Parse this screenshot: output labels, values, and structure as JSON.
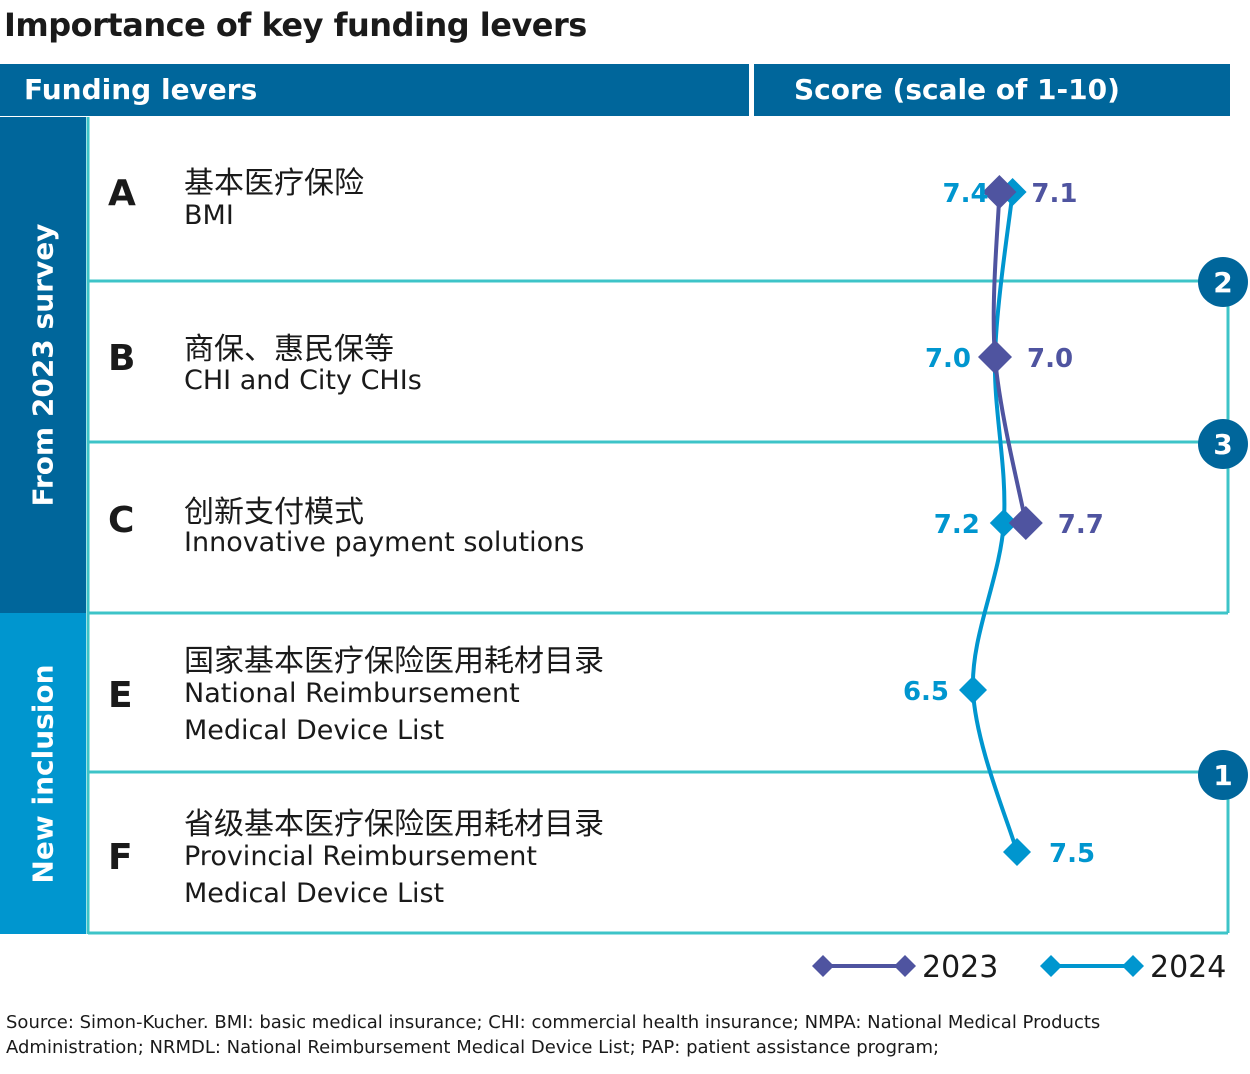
{
  "title": "Importance of key funding levers",
  "header": {
    "left": "Funding levers",
    "right": "Score (scale of 1-10)"
  },
  "groups": [
    {
      "label": "From 2023 survey",
      "color": "#00669b"
    },
    {
      "label": "New inclusion",
      "color": "#0096cf"
    }
  ],
  "rows": [
    {
      "letter": "A",
      "cn": "基本医疗保险",
      "en": [
        "BMI"
      ]
    },
    {
      "letter": "B",
      "cn": "商保、惠民保等",
      "en": [
        "CHI and City CHIs"
      ]
    },
    {
      "letter": "C",
      "cn": "创新支付模式",
      "en": [
        "Innovative payment solutions"
      ]
    },
    {
      "letter": "E",
      "cn": "国家基本医疗保险医用耗材目录",
      "en": [
        "National Reimbursement",
        "Medical Device List"
      ]
    },
    {
      "letter": "F",
      "cn": "省级基本医疗保险医用耗材目录",
      "en": [
        "Provincial Reimbursement",
        "Medical Device List"
      ]
    }
  ],
  "rank_badges": [
    {
      "label": "2",
      "row": "B"
    },
    {
      "label": "3",
      "row": "C"
    },
    {
      "label": "1",
      "row": "F"
    }
  ],
  "chart_data": {
    "type": "line",
    "title": "Importance of key funding levers",
    "ylabel": "Score (scale of 1-10)",
    "categories": [
      "A",
      "B",
      "C",
      "E",
      "F"
    ],
    "series": [
      {
        "name": "2023",
        "color": "#4f54a0",
        "values": [
          7.1,
          7.0,
          7.7,
          null,
          null
        ],
        "labels": [
          "7.1",
          "7.0",
          "7.7",
          null,
          null
        ]
      },
      {
        "name": "2024",
        "color": "#0096cf",
        "values": [
          7.4,
          7.0,
          7.2,
          6.5,
          7.5
        ],
        "labels": [
          "7.4",
          "7.0",
          "7.2",
          "6.5",
          "7.5"
        ]
      }
    ]
  },
  "legend": [
    {
      "name": "2023",
      "color": "#4f54a0"
    },
    {
      "name": "2024",
      "color": "#0096cf"
    }
  ],
  "colors": {
    "header": "#00669b",
    "new": "#0096cf",
    "frame": "#3dc4c8",
    "v2023": "#4f54a0",
    "v2024": "#0096cf"
  },
  "source": "Source: Simon-Kucher. BMI: basic medical insurance; CHI: commercial health insurance; NMPA: National Medical Products Administration; NRMDL: National Reimbursement Medical Device List; PAP: patient assistance program;"
}
